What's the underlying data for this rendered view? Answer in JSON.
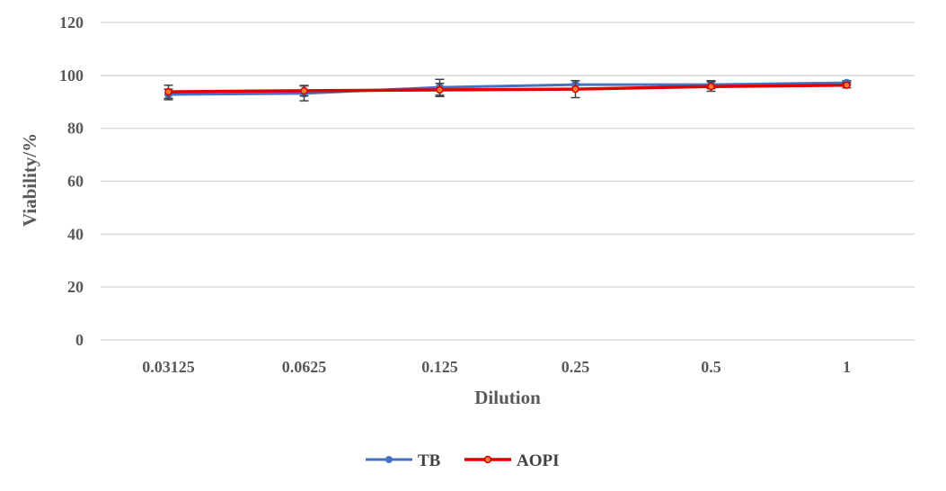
{
  "chart_data": {
    "type": "line",
    "title": "",
    "xlabel": "Dilution",
    "ylabel": "Viability/%",
    "categories": [
      "0.03125",
      "0.0625",
      "0.125",
      "0.25",
      "0.5",
      "1"
    ],
    "ylim": [
      0,
      120
    ],
    "yticks": [
      "0",
      "20",
      "40",
      "60",
      "80",
      "100",
      "120"
    ],
    "grid": "horizontal",
    "legend_position": "bottom",
    "series": [
      {
        "name": "TB",
        "color": "#4472c4",
        "values": [
          92.8,
          93.2,
          95.5,
          96.5,
          96.5,
          97.2
        ],
        "errors": [
          2.0,
          2.8,
          3.0,
          1.5,
          1.5,
          0.8
        ]
      },
      {
        "name": "AOPI",
        "color": "#e00000",
        "marker_color": "#ed7d31",
        "values": [
          93.8,
          94.2,
          94.5,
          94.8,
          95.8,
          96.3
        ],
        "errors": [
          2.5,
          2.0,
          2.5,
          3.2,
          1.8,
          1.0
        ]
      }
    ]
  }
}
